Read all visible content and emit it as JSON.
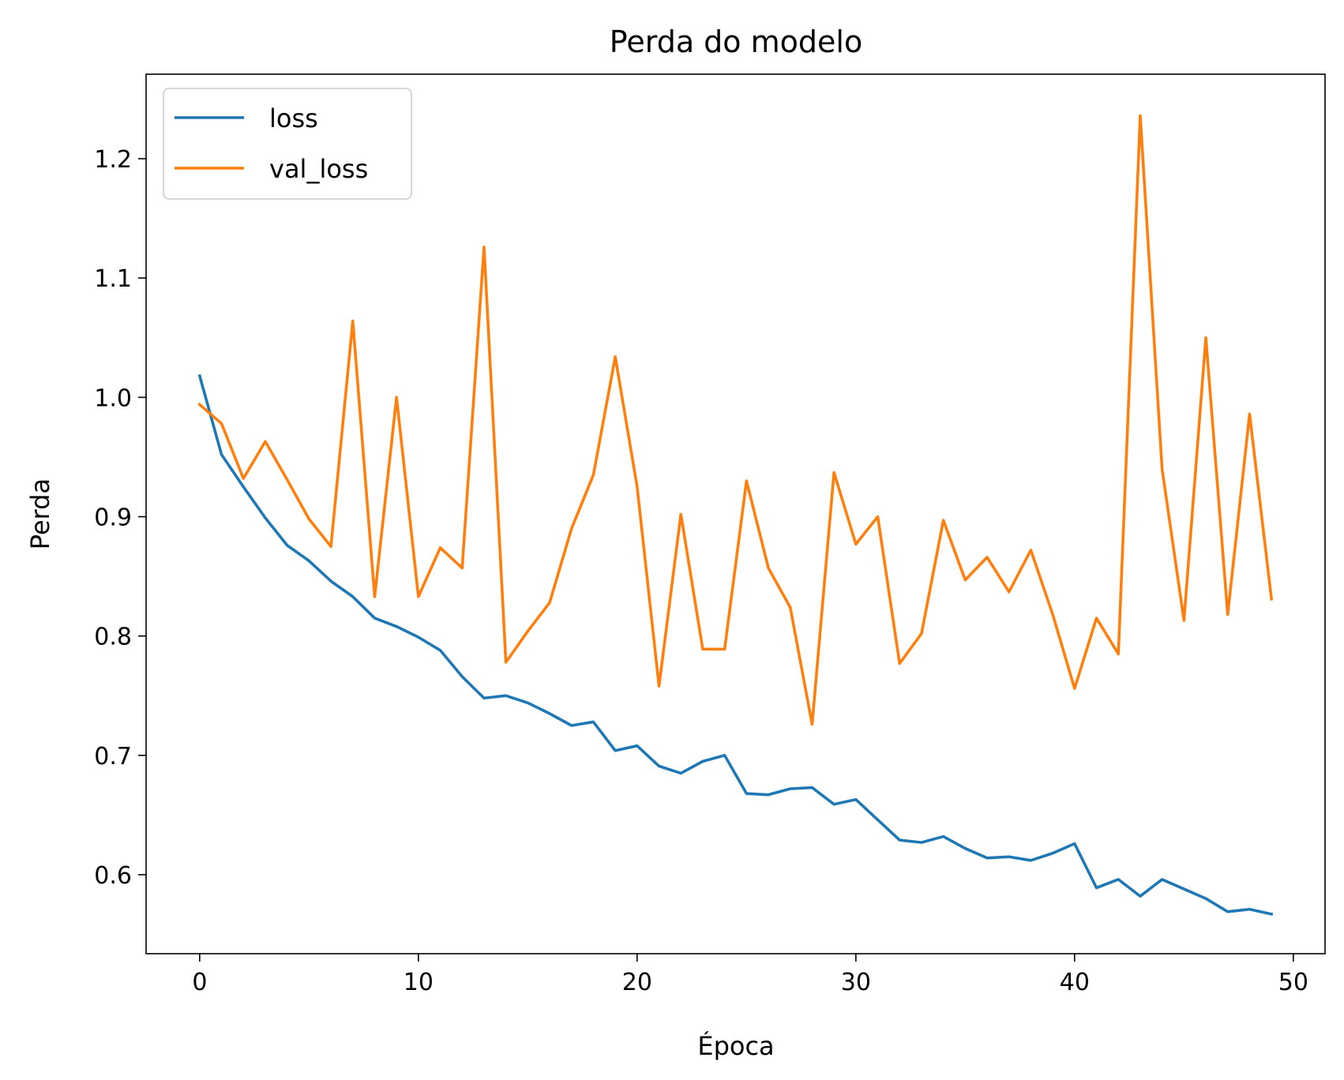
{
  "chart_data": {
    "type": "line",
    "title": "Perda do modelo",
    "xlabel": "Época",
    "ylabel": "Perda",
    "xlim": [
      -2.45,
      51.45
    ],
    "ylim": [
      0.5338,
      1.2708
    ],
    "xticks": [
      0,
      10,
      20,
      30,
      40,
      50
    ],
    "yticks": [
      0.6,
      0.7,
      0.8,
      0.9,
      1.0,
      1.1,
      1.2
    ],
    "ytick_labels": [
      "0.6",
      "0.7",
      "0.8",
      "0.9",
      "1.0",
      "1.1",
      "1.2"
    ],
    "grid": false,
    "legend_position": "top-left",
    "x": [
      0,
      1,
      2,
      3,
      4,
      5,
      6,
      7,
      8,
      9,
      10,
      11,
      12,
      13,
      14,
      15,
      16,
      17,
      18,
      19,
      20,
      21,
      22,
      23,
      24,
      25,
      26,
      27,
      28,
      29,
      30,
      31,
      32,
      33,
      34,
      35,
      36,
      37,
      38,
      39,
      40,
      41,
      42,
      43,
      44,
      45,
      46,
      47,
      48,
      49
    ],
    "series": [
      {
        "name": "loss",
        "color": "#1f77b4",
        "values": [
          1.018,
          0.952,
          0.925,
          0.899,
          0.876,
          0.863,
          0.846,
          0.833,
          0.815,
          0.808,
          0.799,
          0.788,
          0.766,
          0.748,
          0.75,
          0.744,
          0.735,
          0.725,
          0.728,
          0.704,
          0.708,
          0.691,
          0.685,
          0.695,
          0.7,
          0.668,
          0.667,
          0.672,
          0.673,
          0.659,
          0.663,
          0.646,
          0.629,
          0.627,
          0.632,
          0.622,
          0.614,
          0.615,
          0.612,
          0.618,
          0.626,
          0.589,
          0.596,
          0.582,
          0.596,
          0.588,
          0.58,
          0.569,
          0.571,
          0.567
        ]
      },
      {
        "name": "val_loss",
        "color": "#ff7f0e",
        "values": [
          0.994,
          0.978,
          0.932,
          0.963,
          0.931,
          0.898,
          0.875,
          1.064,
          0.833,
          1.0,
          0.833,
          0.874,
          0.857,
          1.126,
          0.778,
          0.804,
          0.828,
          0.89,
          0.935,
          1.034,
          0.925,
          0.758,
          0.902,
          0.789,
          0.789,
          0.93,
          0.857,
          0.824,
          0.726,
          0.937,
          0.877,
          0.9,
          0.777,
          0.802,
          0.897,
          0.847,
          0.866,
          0.837,
          0.872,
          0.818,
          0.756,
          0.815,
          0.785,
          1.236,
          0.94,
          0.813,
          1.05,
          0.818,
          0.986,
          0.831
        ]
      }
    ]
  }
}
